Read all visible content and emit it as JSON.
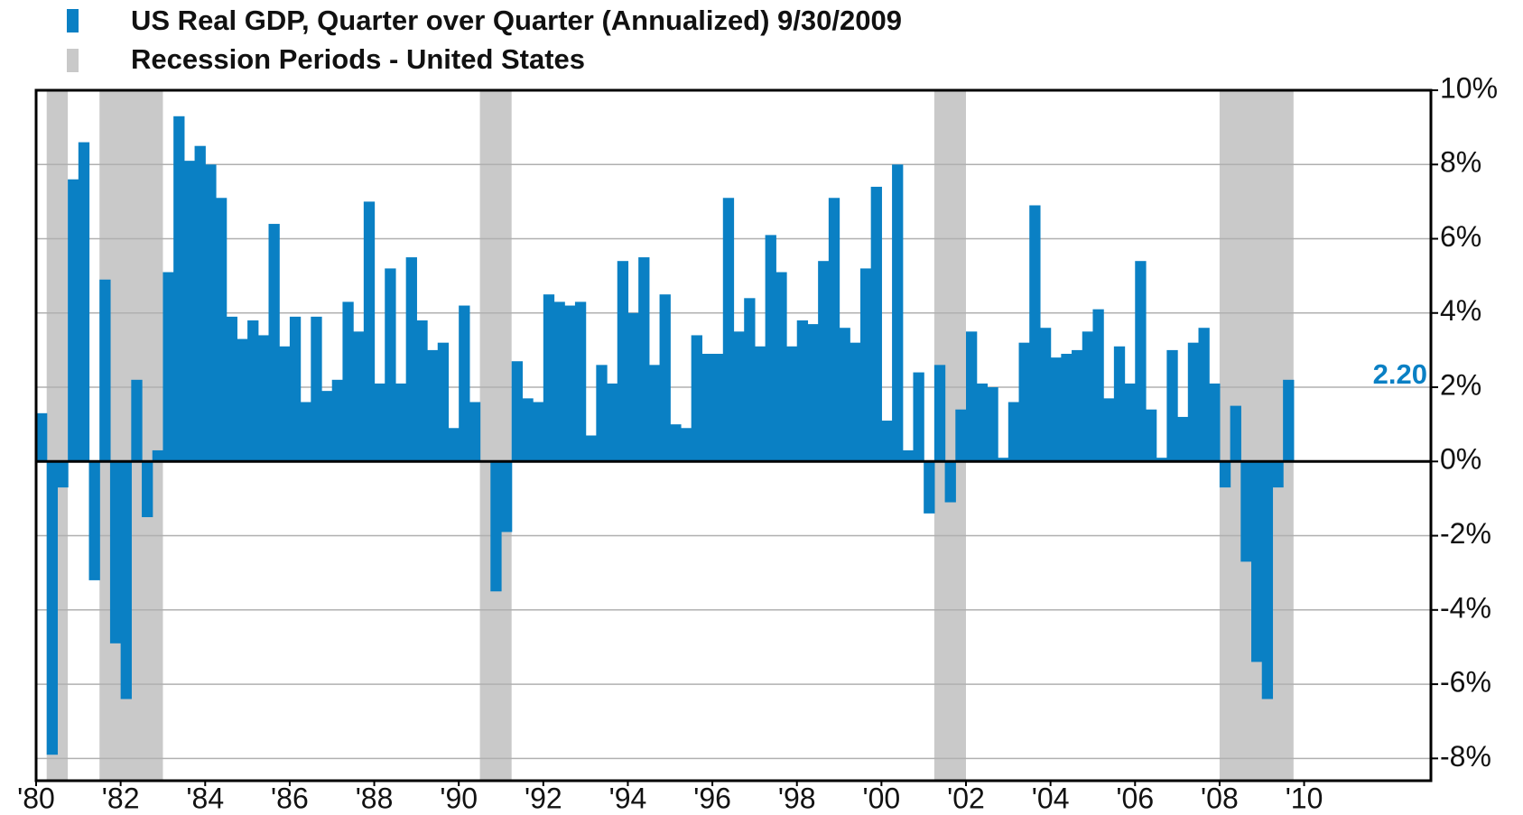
{
  "chart_data": {
    "type": "bar",
    "series": [
      {
        "name": "US Real GDP, Quarter over Quarter (Annualized) 9/30/2009",
        "color": "#0a80c4",
        "x": [
          1980,
          1980.25,
          1980.5,
          1980.75,
          1981,
          1981.25,
          1981.5,
          1981.75,
          1982,
          1982.25,
          1982.5,
          1982.75,
          1983,
          1983.25,
          1983.5,
          1983.75,
          1984,
          1984.25,
          1984.5,
          1984.75,
          1985,
          1985.25,
          1985.5,
          1985.75,
          1986,
          1986.25,
          1986.5,
          1986.75,
          1987,
          1987.25,
          1987.5,
          1987.75,
          1988,
          1988.25,
          1988.5,
          1988.75,
          1989,
          1989.25,
          1989.5,
          1989.75,
          1990,
          1990.25,
          1990.5,
          1990.75,
          1991,
          1991.25,
          1991.5,
          1991.75,
          1992,
          1992.25,
          1992.5,
          1992.75,
          1993,
          1993.25,
          1993.5,
          1993.75,
          1994,
          1994.25,
          1994.5,
          1994.75,
          1995,
          1995.25,
          1995.5,
          1995.75,
          1996,
          1996.25,
          1996.5,
          1996.75,
          1997,
          1997.25,
          1997.5,
          1997.75,
          1998,
          1998.25,
          1998.5,
          1998.75,
          1999,
          1999.25,
          1999.5,
          1999.75,
          2000,
          2000.25,
          2000.5,
          2000.75,
          2001,
          2001.25,
          2001.5,
          2001.75,
          2002,
          2002.25,
          2002.5,
          2002.75,
          2003,
          2003.25,
          2003.5,
          2003.75,
          2004,
          2004.25,
          2004.5,
          2004.75,
          2005,
          2005.25,
          2005.5,
          2005.75,
          2006,
          2006.25,
          2006.5,
          2006.75,
          2007,
          2007.25,
          2007.5,
          2007.75,
          2008,
          2008.25,
          2008.5,
          2008.75,
          2009,
          2009.25,
          2009.5
        ],
        "values": [
          1.3,
          -7.9,
          -0.7,
          7.6,
          8.6,
          -3.2,
          4.9,
          -4.9,
          -6.4,
          2.2,
          -1.5,
          0.3,
          5.1,
          9.3,
          8.1,
          8.5,
          8.0,
          7.1,
          3.9,
          3.3,
          3.8,
          3.4,
          6.4,
          3.1,
          3.9,
          1.6,
          3.9,
          1.9,
          2.2,
          4.3,
          3.5,
          7.0,
          2.1,
          5.2,
          2.1,
          5.5,
          3.8,
          3.0,
          3.2,
          0.9,
          4.2,
          1.6,
          0,
          -3.5,
          -1.9,
          2.7,
          1.7,
          1.6,
          4.5,
          4.3,
          4.2,
          4.3,
          0.7,
          2.6,
          2.1,
          5.4,
          4.0,
          5.5,
          2.6,
          4.5,
          1.0,
          0.9,
          3.4,
          2.9,
          2.9,
          7.1,
          3.5,
          4.4,
          3.1,
          6.1,
          5.1,
          3.1,
          3.8,
          3.7,
          5.4,
          7.1,
          3.6,
          3.2,
          5.2,
          7.4,
          1.1,
          8.0,
          0.3,
          2.4,
          -1.4,
          2.6,
          -1.1,
          1.4,
          3.5,
          2.1,
          2.0,
          0.1,
          1.6,
          3.2,
          6.9,
          3.6,
          2.8,
          2.9,
          3.0,
          3.5,
          4.1,
          1.7,
          3.1,
          2.1,
          5.4,
          1.4,
          0.1,
          3.0,
          1.2,
          3.2,
          3.6,
          2.1,
          -0.7,
          1.5,
          -2.7,
          -5.4,
          -6.4,
          -0.7,
          2.2
        ],
        "value_labels": [
          null,
          null,
          null,
          null,
          null,
          null,
          null,
          null,
          null,
          null,
          null,
          null,
          null,
          null,
          null,
          null,
          null,
          null,
          null,
          null,
          null,
          null,
          null,
          null,
          null,
          null,
          null,
          null,
          null,
          null,
          null,
          null,
          null,
          null,
          null,
          null,
          null,
          null,
          null,
          null,
          null,
          null,
          null,
          null,
          null,
          null,
          null,
          null,
          null,
          null,
          null,
          null,
          null,
          null,
          null,
          null,
          null,
          null,
          null,
          null,
          null,
          null,
          null,
          null,
          null,
          null,
          null,
          null,
          null,
          null,
          null,
          null,
          null,
          null,
          null,
          null,
          null,
          null,
          null,
          null,
          null,
          null,
          null,
          null,
          null,
          null,
          null,
          null,
          null,
          null,
          null,
          null,
          null,
          null,
          null,
          null,
          null,
          null,
          null,
          null,
          null,
          null,
          null,
          null,
          null,
          null,
          null,
          null,
          null,
          null,
          null,
          null,
          null,
          null,
          null,
          null,
          null,
          null,
          "2.20"
        ]
      }
    ],
    "recessions": {
      "name": "Recession Periods - United States",
      "color": "#c9c9c9",
      "periods": [
        [
          1980.25,
          1980.75
        ],
        [
          1981.5,
          1983.0
        ],
        [
          1990.5,
          1991.25
        ],
        [
          2001.25,
          2002.0
        ],
        [
          2008.0,
          2009.75
        ]
      ]
    },
    "xlim": [
      1980,
      2013
    ],
    "xticks": [
      {
        "value": 1980,
        "label": "'80"
      },
      {
        "value": 1982,
        "label": "'82"
      },
      {
        "value": 1984,
        "label": "'84"
      },
      {
        "value": 1986,
        "label": "'86"
      },
      {
        "value": 1988,
        "label": "'88"
      },
      {
        "value": 1990,
        "label": "'90"
      },
      {
        "value": 1992,
        "label": "'92"
      },
      {
        "value": 1994,
        "label": "'94"
      },
      {
        "value": 1996,
        "label": "'96"
      },
      {
        "value": 1998,
        "label": "'98"
      },
      {
        "value": 2000,
        "label": "'00"
      },
      {
        "value": 2002,
        "label": "'02"
      },
      {
        "value": 2004,
        "label": "'04"
      },
      {
        "value": 2006,
        "label": "'06"
      },
      {
        "value": 2008,
        "label": "'08"
      },
      {
        "value": 2010,
        "label": "'10"
      }
    ],
    "ylim": [
      -8.6,
      10
    ],
    "yticks": [
      {
        "value": -8,
        "label": "-8%"
      },
      {
        "value": -6,
        "label": "-6%"
      },
      {
        "value": -4,
        "label": "-4%"
      },
      {
        "value": -2,
        "label": "-2%"
      },
      {
        "value": 0,
        "label": "0%"
      },
      {
        "value": 2,
        "label": "2%"
      },
      {
        "value": 4,
        "label": "4%"
      },
      {
        "value": 6,
        "label": "6%"
      },
      {
        "value": 8,
        "label": "8%"
      },
      {
        "value": 10,
        "label": "10%"
      }
    ],
    "grid": true
  }
}
